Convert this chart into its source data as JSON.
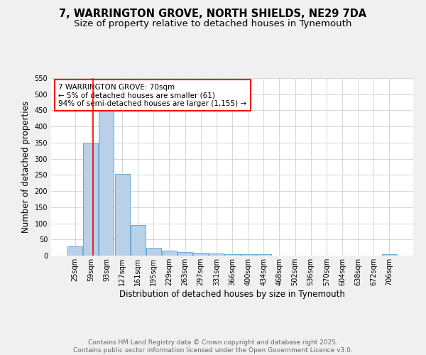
{
  "title_line1": "7, WARRINGTON GROVE, NORTH SHIELDS, NE29 7DA",
  "title_line2": "Size of property relative to detached houses in Tynemouth",
  "xlabel": "Distribution of detached houses by size in Tynemouth",
  "ylabel": "Number of detached properties",
  "categories": [
    "25sqm",
    "59sqm",
    "93sqm",
    "127sqm",
    "161sqm",
    "195sqm",
    "229sqm",
    "263sqm",
    "297sqm",
    "331sqm",
    "366sqm",
    "400sqm",
    "434sqm",
    "468sqm",
    "502sqm",
    "536sqm",
    "570sqm",
    "604sqm",
    "638sqm",
    "672sqm",
    "706sqm"
  ],
  "values": [
    28,
    350,
    450,
    252,
    95,
    25,
    15,
    12,
    8,
    6,
    5,
    4,
    4,
    0,
    0,
    0,
    0,
    0,
    0,
    0,
    4
  ],
  "bar_color": "#b8d0e8",
  "bar_edge_color": "#6aaad4",
  "red_line_x": 1.15,
  "annotation_box_text": "7 WARRINGTON GROVE: 70sqm\n← 5% of detached houses are smaller (61)\n94% of semi-detached houses are larger (1,155) →",
  "ylim": [
    0,
    550
  ],
  "yticks": [
    0,
    50,
    100,
    150,
    200,
    250,
    300,
    350,
    400,
    450,
    500,
    550
  ],
  "footer_line1": "Contains HM Land Registry data © Crown copyright and database right 2025.",
  "footer_line2": "Contains public sector information licensed under the Open Government Licence v3.0.",
  "background_color": "#f0f0f0",
  "plot_background_color": "#ffffff",
  "grid_color": "#d0d0d0",
  "title_fontsize": 10.5,
  "subtitle_fontsize": 9.5,
  "axis_label_fontsize": 8.5,
  "tick_fontsize": 7,
  "annotation_fontsize": 7.5,
  "footer_fontsize": 6.5
}
